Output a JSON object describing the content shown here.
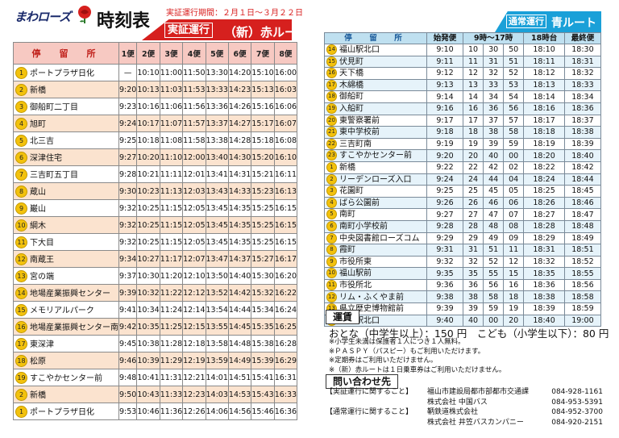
{
  "logo_text": "まわローズ",
  "title": "時刻表",
  "left": {
    "period": "実証運行期間：２月１日～３月２２日",
    "badge": "実証運行",
    "route_name": "（新）赤ルート",
    "headers": [
      "停　留　所",
      "1便",
      "2便",
      "3便",
      "4便",
      "5便",
      "6便",
      "7便",
      "8便"
    ],
    "rows": [
      {
        "n": "1",
        "stop": "ポートプラザ日化",
        "t": [
          "—",
          "10:10",
          "11:00",
          "11:50",
          "13:30",
          "14:20",
          "15:10",
          "16:00"
        ]
      },
      {
        "n": "2",
        "stop": "新橋",
        "t": [
          "9:20",
          "10:13",
          "11:03",
          "11:53",
          "13:33",
          "14:23",
          "15:13",
          "16:03"
        ]
      },
      {
        "n": "3",
        "stop": "御船町二丁目",
        "t": [
          "9:23",
          "10:16",
          "11:06",
          "11:56",
          "13:36",
          "14:26",
          "15:16",
          "16:06"
        ]
      },
      {
        "n": "4",
        "stop": "旭町",
        "t": [
          "9:24",
          "10:17",
          "11:07",
          "11:57",
          "13:37",
          "14:27",
          "15:17",
          "16:07"
        ]
      },
      {
        "n": "5",
        "stop": "北三吉",
        "t": [
          "9:25",
          "10:18",
          "11:08",
          "11:58",
          "13:38",
          "14:28",
          "15:18",
          "16:08"
        ]
      },
      {
        "n": "6",
        "stop": "深津住宅",
        "t": [
          "9:27",
          "10:20",
          "11:10",
          "12:00",
          "13:40",
          "14:30",
          "15:20",
          "16:10"
        ]
      },
      {
        "n": "7",
        "stop": "三吉町五丁目",
        "t": [
          "9:28",
          "10:21",
          "11:11",
          "12:01",
          "13:41",
          "14:31",
          "15:21",
          "16:11"
        ]
      },
      {
        "n": "8",
        "stop": "蔵山",
        "t": [
          "9:30",
          "10:23",
          "11:13",
          "12:03",
          "13:43",
          "14:33",
          "15:23",
          "16:13"
        ]
      },
      {
        "n": "9",
        "stop": "巌山",
        "t": [
          "9:32",
          "10:25",
          "11:15",
          "12:05",
          "13:45",
          "14:35",
          "15:25",
          "16:15"
        ]
      },
      {
        "n": "10",
        "stop": "綱木",
        "t": [
          "9:32",
          "10:25",
          "11:15",
          "12:05",
          "13:45",
          "14:35",
          "15:25",
          "16:15"
        ]
      },
      {
        "n": "11",
        "stop": "下大目",
        "t": [
          "9:32",
          "10:25",
          "11:15",
          "12:05",
          "13:45",
          "14:35",
          "15:25",
          "16:15"
        ]
      },
      {
        "n": "12",
        "stop": "南蔵王",
        "t": [
          "9:34",
          "10:27",
          "11:17",
          "12:07",
          "13:47",
          "14:37",
          "15:27",
          "16:17"
        ]
      },
      {
        "n": "13",
        "stop": "宮の端",
        "t": [
          "9:37",
          "10:30",
          "11:20",
          "12:10",
          "13:50",
          "14:40",
          "15:30",
          "16:20"
        ]
      },
      {
        "n": "14",
        "stop": "地場産業振興センター",
        "t": [
          "9:39",
          "10:32",
          "11:22",
          "12:12",
          "13:52",
          "14:42",
          "15:32",
          "16:22"
        ]
      },
      {
        "n": "15",
        "stop": "メモリアルパーク",
        "t": [
          "9:41",
          "10:34",
          "11:24",
          "12:14",
          "13:54",
          "14:44",
          "15:34",
          "16:24"
        ]
      },
      {
        "n": "16",
        "stop": "地場産業振興センター南",
        "t": [
          "9:42",
          "10:35",
          "11:25",
          "12:15",
          "13:55",
          "14:45",
          "15:35",
          "16:25"
        ]
      },
      {
        "n": "17",
        "stop": "東深津",
        "t": [
          "9:45",
          "10:38",
          "11:28",
          "12:18",
          "13:58",
          "14:48",
          "15:38",
          "16:28"
        ]
      },
      {
        "n": "18",
        "stop": "松原",
        "t": [
          "9:46",
          "10:39",
          "11:29",
          "12:19",
          "13:59",
          "14:49",
          "15:39",
          "16:29"
        ]
      },
      {
        "n": "19",
        "stop": "すこやかセンター前",
        "t": [
          "9:48",
          "10:41",
          "11:31",
          "12:21",
          "14:01",
          "14:51",
          "15:41",
          "16:31"
        ]
      },
      {
        "n": "2",
        "stop": "新橋",
        "t": [
          "9:50",
          "10:43",
          "11:33",
          "12:23",
          "14:03",
          "14:53",
          "15:43",
          "16:33"
        ]
      },
      {
        "n": "1",
        "stop": "ポートプラザ日化",
        "t": [
          "9:53",
          "10:46",
          "11:36",
          "12:26",
          "14:06",
          "14:56",
          "15:46",
          "16:36"
        ]
      }
    ]
  },
  "right": {
    "badge": "通常運行",
    "route_name": "青ルート",
    "headers": [
      "停　留　所",
      "始発便",
      "9時～17時",
      "18時台",
      "最終便"
    ],
    "rows": [
      {
        "n": "14",
        "stop": "福山駅北口",
        "t": [
          "9:10",
          "10",
          "30",
          "50",
          "18:10",
          "18:30"
        ]
      },
      {
        "n": "15",
        "stop": "伏見町",
        "t": [
          "9:11",
          "11",
          "31",
          "51",
          "18:11",
          "18:31"
        ]
      },
      {
        "n": "16",
        "stop": "天下橋",
        "t": [
          "9:12",
          "12",
          "32",
          "52",
          "18:12",
          "18:32"
        ]
      },
      {
        "n": "17",
        "stop": "木綿橋",
        "t": [
          "9:13",
          "13",
          "33",
          "53",
          "18:13",
          "18:33"
        ]
      },
      {
        "n": "18",
        "stop": "御船町",
        "t": [
          "9:14",
          "14",
          "34",
          "54",
          "18:14",
          "18:34"
        ]
      },
      {
        "n": "19",
        "stop": "入船町",
        "t": [
          "9:16",
          "16",
          "36",
          "56",
          "18:16",
          "18:36"
        ]
      },
      {
        "n": "20",
        "stop": "東警察署前",
        "t": [
          "9:17",
          "17",
          "37",
          "57",
          "18:17",
          "18:37"
        ]
      },
      {
        "n": "21",
        "stop": "東中学校前",
        "t": [
          "9:18",
          "18",
          "38",
          "58",
          "18:18",
          "18:38"
        ]
      },
      {
        "n": "22",
        "stop": "三吉町南",
        "t": [
          "9:19",
          "19",
          "39",
          "59",
          "18:19",
          "18:39"
        ]
      },
      {
        "n": "23",
        "stop": "すこやかセンター前",
        "t": [
          "9:20",
          "20",
          "40",
          "00",
          "18:20",
          "18:40"
        ]
      },
      {
        "n": "1",
        "stop": "新橋",
        "t": [
          "9:22",
          "22",
          "42",
          "02",
          "18:22",
          "18:42"
        ]
      },
      {
        "n": "2",
        "stop": "リーデンローズ入口",
        "t": [
          "9:24",
          "24",
          "44",
          "04",
          "18:24",
          "18:44"
        ]
      },
      {
        "n": "3",
        "stop": "花園町",
        "t": [
          "9:25",
          "25",
          "45",
          "05",
          "18:25",
          "18:45"
        ]
      },
      {
        "n": "4",
        "stop": "ばら公園前",
        "t": [
          "9:26",
          "26",
          "46",
          "06",
          "18:26",
          "18:46"
        ]
      },
      {
        "n": "5",
        "stop": "南町",
        "t": [
          "9:27",
          "27",
          "47",
          "07",
          "18:27",
          "18:47"
        ]
      },
      {
        "n": "6",
        "stop": "南町小学校前",
        "t": [
          "9:28",
          "28",
          "48",
          "08",
          "18:28",
          "18:48"
        ]
      },
      {
        "n": "7",
        "stop": "中央図書館ローズコム",
        "t": [
          "9:29",
          "29",
          "49",
          "09",
          "18:29",
          "18:49"
        ]
      },
      {
        "n": "8",
        "stop": "霞町",
        "t": [
          "9:31",
          "31",
          "51",
          "11",
          "18:31",
          "18:51"
        ]
      },
      {
        "n": "9",
        "stop": "市役所東",
        "t": [
          "9:32",
          "32",
          "52",
          "12",
          "18:32",
          "18:52"
        ]
      },
      {
        "n": "10",
        "stop": "福山駅前",
        "t": [
          "9:35",
          "35",
          "55",
          "15",
          "18:35",
          "18:55"
        ]
      },
      {
        "n": "11",
        "stop": "市役所北",
        "t": [
          "9:36",
          "36",
          "56",
          "16",
          "18:36",
          "18:56"
        ]
      },
      {
        "n": "12",
        "stop": "リム・ふくやま前",
        "t": [
          "9:38",
          "38",
          "58",
          "18",
          "18:38",
          "18:58"
        ]
      },
      {
        "n": "13",
        "stop": "県立歴史博物館前",
        "t": [
          "9:39",
          "39",
          "59",
          "19",
          "18:39",
          "18:59"
        ]
      },
      {
        "n": "14",
        "stop": "福山駅北口",
        "t": [
          "9:40",
          "40",
          "00",
          "20",
          "18:40",
          "19:00"
        ]
      }
    ]
  },
  "fare": {
    "heading": "運賃",
    "text": "おとな（中学生以上）：150 円　こども（小学生以下）：80 円",
    "notes": [
      "※小学生未満は保護者１人につき１人無料。",
      "※ＰＡＳＰＹ（パスピー）もご利用いただけます。",
      "※定期券はご利用いただけません。",
      "※（新）赤ルートは１日乗車券はご利用いただけません。"
    ]
  },
  "contact": {
    "heading": "問い合わせ先",
    "rows": [
      {
        "a": "【実証運行に関すること】",
        "b": "福山市建設局都市部都市交通課",
        "c": "084-928-1161"
      },
      {
        "a": "",
        "b": "株式会社 中国バス",
        "c": "084-953-5391"
      },
      {
        "a": "【通常運行に関すること】",
        "b": "鞆鉄道株式会社",
        "c": "084-952-3700"
      },
      {
        "a": "",
        "b": "株式会社 井笠バスカンパニー",
        "c": "084-920-2151"
      }
    ]
  }
}
